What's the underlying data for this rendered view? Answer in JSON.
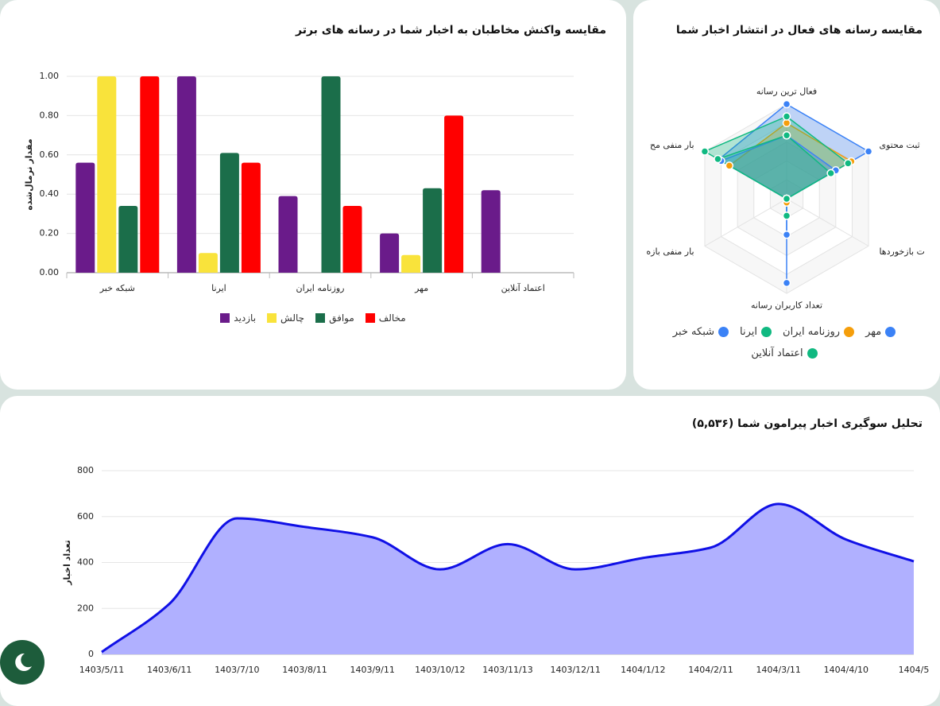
{
  "chart_data": [
    {
      "type": "bar",
      "title": "مقایسه واکنش مخاطبان به اخبار شما در رسانه های برتر",
      "y_label": "مقدار نرمال‌شده",
      "categories": [
        "شبکه خبر",
        "ایرنا",
        "روزنامه ایران",
        "مهر",
        "اعتماد آنلاین"
      ],
      "series": [
        {
          "name": "بازدید",
          "color": "#6a1b8a",
          "values": [
            0.56,
            1.0,
            0.39,
            0.2,
            0.42
          ]
        },
        {
          "name": "چالش",
          "color": "#f9e33b",
          "values": [
            1.0,
            0.1,
            0,
            0.09,
            0
          ]
        },
        {
          "name": "موافق",
          "color": "#1b6e4a",
          "values": [
            0.34,
            0.61,
            1.0,
            0.43,
            0
          ]
        },
        {
          "name": "مخالف",
          "color": "#ff0000",
          "values": [
            1.0,
            0.56,
            0.34,
            0.8,
            0
          ]
        }
      ],
      "ylim": [
        0,
        1
      ],
      "yticks": [
        {
          "value": 0,
          "label": "0.00"
        },
        {
          "value": 0.2,
          "label": "0.20"
        },
        {
          "value": 0.4,
          "label": "0.40"
        },
        {
          "value": 0.6,
          "label": "0.60"
        },
        {
          "value": 0.8,
          "label": "0.80"
        },
        {
          "value": 1,
          "label": "1.00"
        }
      ],
      "grid": true,
      "legend": "bottom"
    },
    {
      "type": "radar",
      "title": "مقایسه رسانه های فعال در انتشار اخبار شما",
      "axes": [
        "فعال ترین رسانه",
        "ثبت محتوی",
        "ت بازخوردها",
        "تعداد کاربران رسانه",
        "بار منفی بازه",
        "بار منفی مح"
      ],
      "series": [
        {
          "name": "مهر",
          "color": "#3b82f6",
          "values": [
            1.0,
            1.0,
            0,
            0.89,
            0,
            0.83
          ]
        },
        {
          "name": "روزنامه ایران",
          "color": "#f59e0b",
          "values": [
            0.8,
            0.79,
            0,
            0.04,
            0,
            0.7
          ]
        },
        {
          "name": "ایرنا",
          "color": "#10b981",
          "values": [
            0.87,
            0.75,
            0,
            0.18,
            0,
            1.0
          ]
        },
        {
          "name": "شبکه خبر",
          "color": "#3b82f6",
          "values": [
            0.67,
            0.6,
            0,
            0.38,
            0,
            0.8
          ]
        },
        {
          "name": "اعتماد آنلاین",
          "color": "#10b981",
          "values": [
            0.67,
            0.54,
            0,
            0,
            0,
            0.84
          ]
        }
      ],
      "rlim": [
        0,
        1
      ],
      "legend": "bottom"
    },
    {
      "type": "area",
      "title": "تحلیل سوگیری اخبار پیرامون شما (۵,۵۳۶)",
      "y_label": "تعداد اخبار",
      "categories": [
        "1403/5/11",
        "1403/6/11",
        "1403/7/10",
        "1403/8/11",
        "1403/9/11",
        "1403/10/12",
        "1403/11/13",
        "1403/12/11",
        "1404/1/12",
        "1404/2/11",
        "1404/3/11",
        "1404/4/10",
        "1404/5"
      ],
      "values": [
        10,
        220,
        592,
        555,
        510,
        370,
        480,
        370,
        420,
        465,
        655,
        500,
        405
      ],
      "color": "#1010e6",
      "fill": "#b0b0ff",
      "ylim": [
        0,
        800
      ],
      "yticks": [
        0,
        200,
        400,
        600,
        800
      ],
      "grid": true
    }
  ]
}
